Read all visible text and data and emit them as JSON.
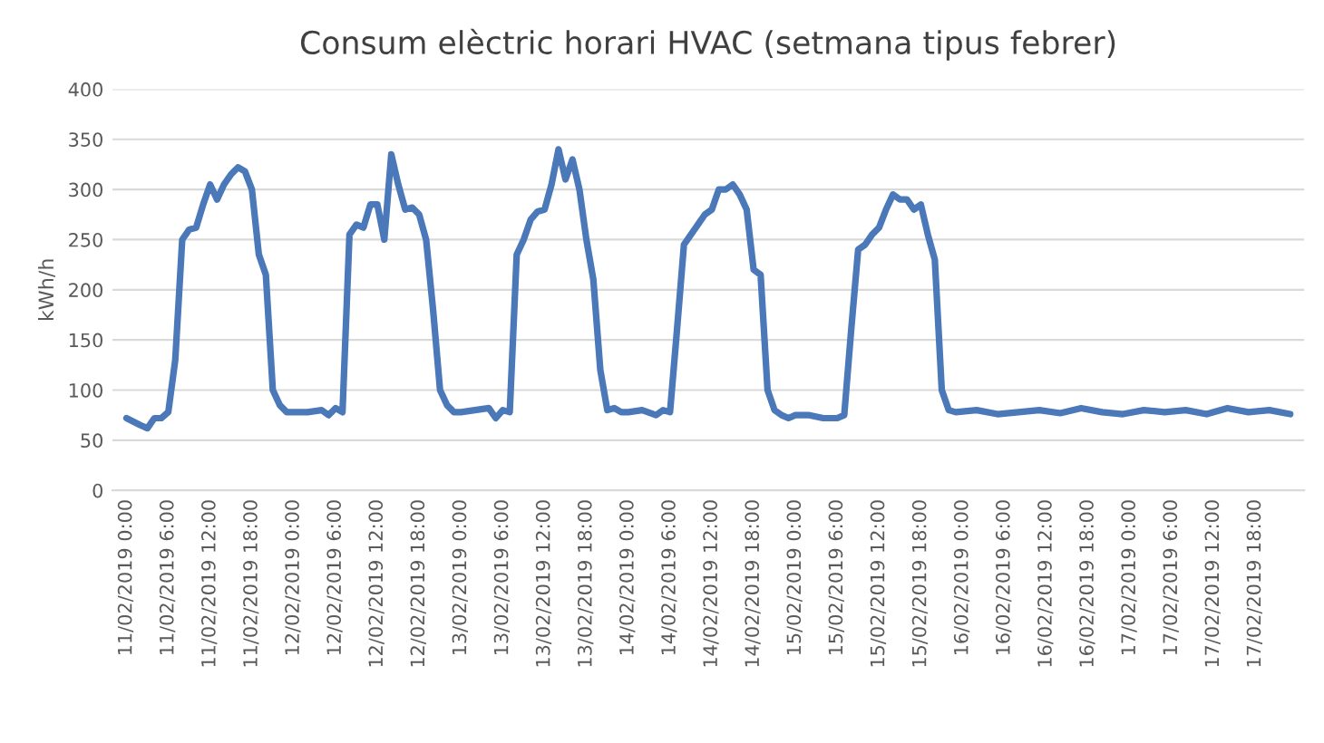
{
  "chart_data": {
    "type": "line",
    "title": "Consum elèctric horari HVAC (setmana tipus febrer)",
    "ylabel": "kWh/h",
    "x": [
      "2019-02-11T00:00",
      "2019-02-11T02:00",
      "2019-02-11T03:00",
      "2019-02-11T04:00",
      "2019-02-11T05:00",
      "2019-02-11T06:00",
      "2019-02-11T07:00",
      "2019-02-11T08:00",
      "2019-02-11T09:00",
      "2019-02-11T10:00",
      "2019-02-11T11:00",
      "2019-02-11T12:00",
      "2019-02-11T13:00",
      "2019-02-11T14:00",
      "2019-02-11T15:00",
      "2019-02-11T16:00",
      "2019-02-11T17:00",
      "2019-02-11T18:00",
      "2019-02-11T19:00",
      "2019-02-11T20:00",
      "2019-02-11T21:00",
      "2019-02-11T22:00",
      "2019-02-11T23:00",
      "2019-02-12T00:00",
      "2019-02-12T02:00",
      "2019-02-12T04:00",
      "2019-02-12T05:00",
      "2019-02-12T06:00",
      "2019-02-12T07:00",
      "2019-02-12T08:00",
      "2019-02-12T09:00",
      "2019-02-12T10:00",
      "2019-02-12T11:00",
      "2019-02-12T12:00",
      "2019-02-12T13:00",
      "2019-02-12T14:00",
      "2019-02-12T15:00",
      "2019-02-12T16:00",
      "2019-02-12T17:00",
      "2019-02-12T18:00",
      "2019-02-12T19:00",
      "2019-02-12T20:00",
      "2019-02-12T21:00",
      "2019-02-12T22:00",
      "2019-02-12T23:00",
      "2019-02-13T00:00",
      "2019-02-13T02:00",
      "2019-02-13T04:00",
      "2019-02-13T05:00",
      "2019-02-13T06:00",
      "2019-02-13T07:00",
      "2019-02-13T08:00",
      "2019-02-13T09:00",
      "2019-02-13T10:00",
      "2019-02-13T11:00",
      "2019-02-13T12:00",
      "2019-02-13T13:00",
      "2019-02-13T14:00",
      "2019-02-13T15:00",
      "2019-02-13T16:00",
      "2019-02-13T17:00",
      "2019-02-13T18:00",
      "2019-02-13T19:00",
      "2019-02-13T20:00",
      "2019-02-13T21:00",
      "2019-02-13T22:00",
      "2019-02-13T23:00",
      "2019-02-14T00:00",
      "2019-02-14T02:00",
      "2019-02-14T04:00",
      "2019-02-14T05:00",
      "2019-02-14T06:00",
      "2019-02-14T07:00",
      "2019-02-14T08:00",
      "2019-02-14T09:00",
      "2019-02-14T10:00",
      "2019-02-14T11:00",
      "2019-02-14T12:00",
      "2019-02-14T13:00",
      "2019-02-14T14:00",
      "2019-02-14T15:00",
      "2019-02-14T16:00",
      "2019-02-14T17:00",
      "2019-02-14T18:00",
      "2019-02-14T19:00",
      "2019-02-14T20:00",
      "2019-02-14T21:00",
      "2019-02-14T22:00",
      "2019-02-14T23:00",
      "2019-02-15T00:00",
      "2019-02-15T02:00",
      "2019-02-15T04:00",
      "2019-02-15T06:00",
      "2019-02-15T07:00",
      "2019-02-15T08:00",
      "2019-02-15T09:00",
      "2019-02-15T10:00",
      "2019-02-15T11:00",
      "2019-02-15T12:00",
      "2019-02-15T13:00",
      "2019-02-15T14:00",
      "2019-02-15T15:00",
      "2019-02-15T16:00",
      "2019-02-15T17:00",
      "2019-02-15T18:00",
      "2019-02-15T19:00",
      "2019-02-15T20:00",
      "2019-02-15T21:00",
      "2019-02-15T22:00",
      "2019-02-15T23:00",
      "2019-02-16T02:00",
      "2019-02-16T05:00",
      "2019-02-16T08:00",
      "2019-02-16T11:00",
      "2019-02-16T14:00",
      "2019-02-16T17:00",
      "2019-02-16T20:00",
      "2019-02-16T23:00",
      "2019-02-17T02:00",
      "2019-02-17T05:00",
      "2019-02-17T08:00",
      "2019-02-17T11:00",
      "2019-02-17T14:00",
      "2019-02-17T17:00",
      "2019-02-17T20:00",
      "2019-02-17T23:00"
    ],
    "series": [
      {
        "color": "#4a78b8",
        "values": [
          72,
          65,
          62,
          72,
          72,
          78,
          130,
          250,
          260,
          262,
          285,
          305,
          290,
          305,
          315,
          322,
          318,
          300,
          235,
          215,
          100,
          85,
          78,
          78,
          78,
          80,
          75,
          82,
          78,
          255,
          265,
          262,
          285,
          285,
          250,
          335,
          305,
          280,
          282,
          275,
          250,
          180,
          100,
          85,
          78,
          78,
          80,
          82,
          72,
          80,
          78,
          235,
          250,
          270,
          278,
          280,
          305,
          340,
          310,
          330,
          300,
          250,
          210,
          120,
          80,
          82,
          78,
          78,
          80,
          75,
          80,
          78,
          160,
          245,
          255,
          265,
          275,
          280,
          300,
          300,
          305,
          295,
          280,
          220,
          215,
          100,
          80,
          75,
          72,
          75,
          75,
          72,
          72,
          75,
          160,
          240,
          245,
          255,
          262,
          280,
          295,
          290,
          290,
          280,
          285,
          255,
          230,
          100,
          80,
          78,
          80,
          76,
          78,
          80,
          77,
          82,
          78,
          76,
          80,
          78,
          80,
          76,
          82,
          78,
          80,
          76
        ]
      }
    ],
    "ylim": [
      0,
      400
    ],
    "yticks": [
      0,
      50,
      100,
      150,
      200,
      250,
      300,
      350,
      400
    ],
    "grid": "y",
    "legend": false,
    "marker": "none",
    "line_style": "solid",
    "xlim": [
      "2019-02-10T22:00",
      "2019-02-18T01:00"
    ],
    "xticks": [
      {
        "value": "2019-02-11T00:00",
        "label": "11/02/2019 0:00"
      },
      {
        "value": "2019-02-11T06:00",
        "label": "11/02/2019 6:00"
      },
      {
        "value": "2019-02-11T12:00",
        "label": "11/02/2019 12:00"
      },
      {
        "value": "2019-02-11T18:00",
        "label": "11/02/2019 18:00"
      },
      {
        "value": "2019-02-12T00:00",
        "label": "12/02/2019 0:00"
      },
      {
        "value": "2019-02-12T06:00",
        "label": "12/02/2019 6:00"
      },
      {
        "value": "2019-02-12T12:00",
        "label": "12/02/2019 12:00"
      },
      {
        "value": "2019-02-12T18:00",
        "label": "12/02/2019 18:00"
      },
      {
        "value": "2019-02-13T00:00",
        "label": "13/02/2019 0:00"
      },
      {
        "value": "2019-02-13T06:00",
        "label": "13/02/2019 6:00"
      },
      {
        "value": "2019-02-13T12:00",
        "label": "13/02/2019 12:00"
      },
      {
        "value": "2019-02-13T18:00",
        "label": "13/02/2019 18:00"
      },
      {
        "value": "2019-02-14T00:00",
        "label": "14/02/2019 0:00"
      },
      {
        "value": "2019-02-14T06:00",
        "label": "14/02/2019 6:00"
      },
      {
        "value": "2019-02-14T12:00",
        "label": "14/02/2019 12:00"
      },
      {
        "value": "2019-02-14T18:00",
        "label": "14/02/2019 18:00"
      },
      {
        "value": "2019-02-15T00:00",
        "label": "15/02/2019 0:00"
      },
      {
        "value": "2019-02-15T06:00",
        "label": "15/02/2019 6:00"
      },
      {
        "value": "2019-02-15T12:00",
        "label": "15/02/2019 12:00"
      },
      {
        "value": "2019-02-15T18:00",
        "label": "15/02/2019 18:00"
      },
      {
        "value": "2019-02-16T00:00",
        "label": "16/02/2019 0:00"
      },
      {
        "value": "2019-02-16T06:00",
        "label": "16/02/2019 6:00"
      },
      {
        "value": "2019-02-16T12:00",
        "label": "16/02/2019 12:00"
      },
      {
        "value": "2019-02-16T18:00",
        "label": "16/02/2019 18:00"
      },
      {
        "value": "2019-02-17T00:00",
        "label": "17/02/2019 0:00"
      },
      {
        "value": "2019-02-17T06:00",
        "label": "17/02/2019 6:00"
      },
      {
        "value": "2019-02-17T12:00",
        "label": "17/02/2019 12:00"
      },
      {
        "value": "2019-02-17T18:00",
        "label": "17/02/2019 18:00"
      }
    ]
  }
}
